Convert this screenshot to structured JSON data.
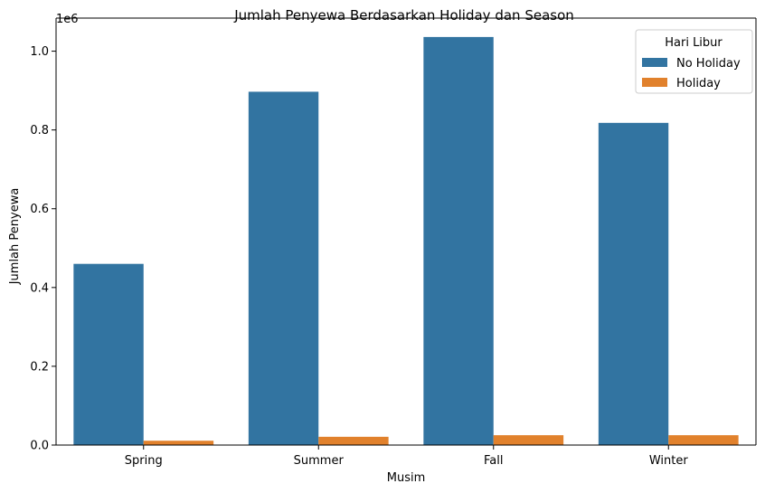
{
  "chart_data": {
    "type": "bar",
    "title": "Jumlah Penyewa Berdasarkan Holiday dan Season",
    "xlabel": "Musim",
    "ylabel": "Jumlah Penyewa",
    "y_offset_label": "1e6",
    "categories": [
      "Spring",
      "Summer",
      "Fall",
      "Winter"
    ],
    "series": [
      {
        "name": "No Holiday",
        "color": "#3274a1",
        "values": [
          460000,
          897000,
          1036000,
          818000
        ]
      },
      {
        "name": "Holiday",
        "color": "#e1812c",
        "values": [
          11000,
          21000,
          25000,
          25000
        ]
      }
    ],
    "ylim": [
      0,
      1084000
    ],
    "yticks": [
      0.0,
      0.2,
      0.4,
      0.6,
      0.8,
      1.0
    ],
    "ytick_labels": [
      "0.0",
      "0.2",
      "0.4",
      "0.6",
      "0.8",
      "1.0"
    ],
    "legend": {
      "title": "Hari Libur",
      "placement": "top-right"
    },
    "grid": false
  }
}
